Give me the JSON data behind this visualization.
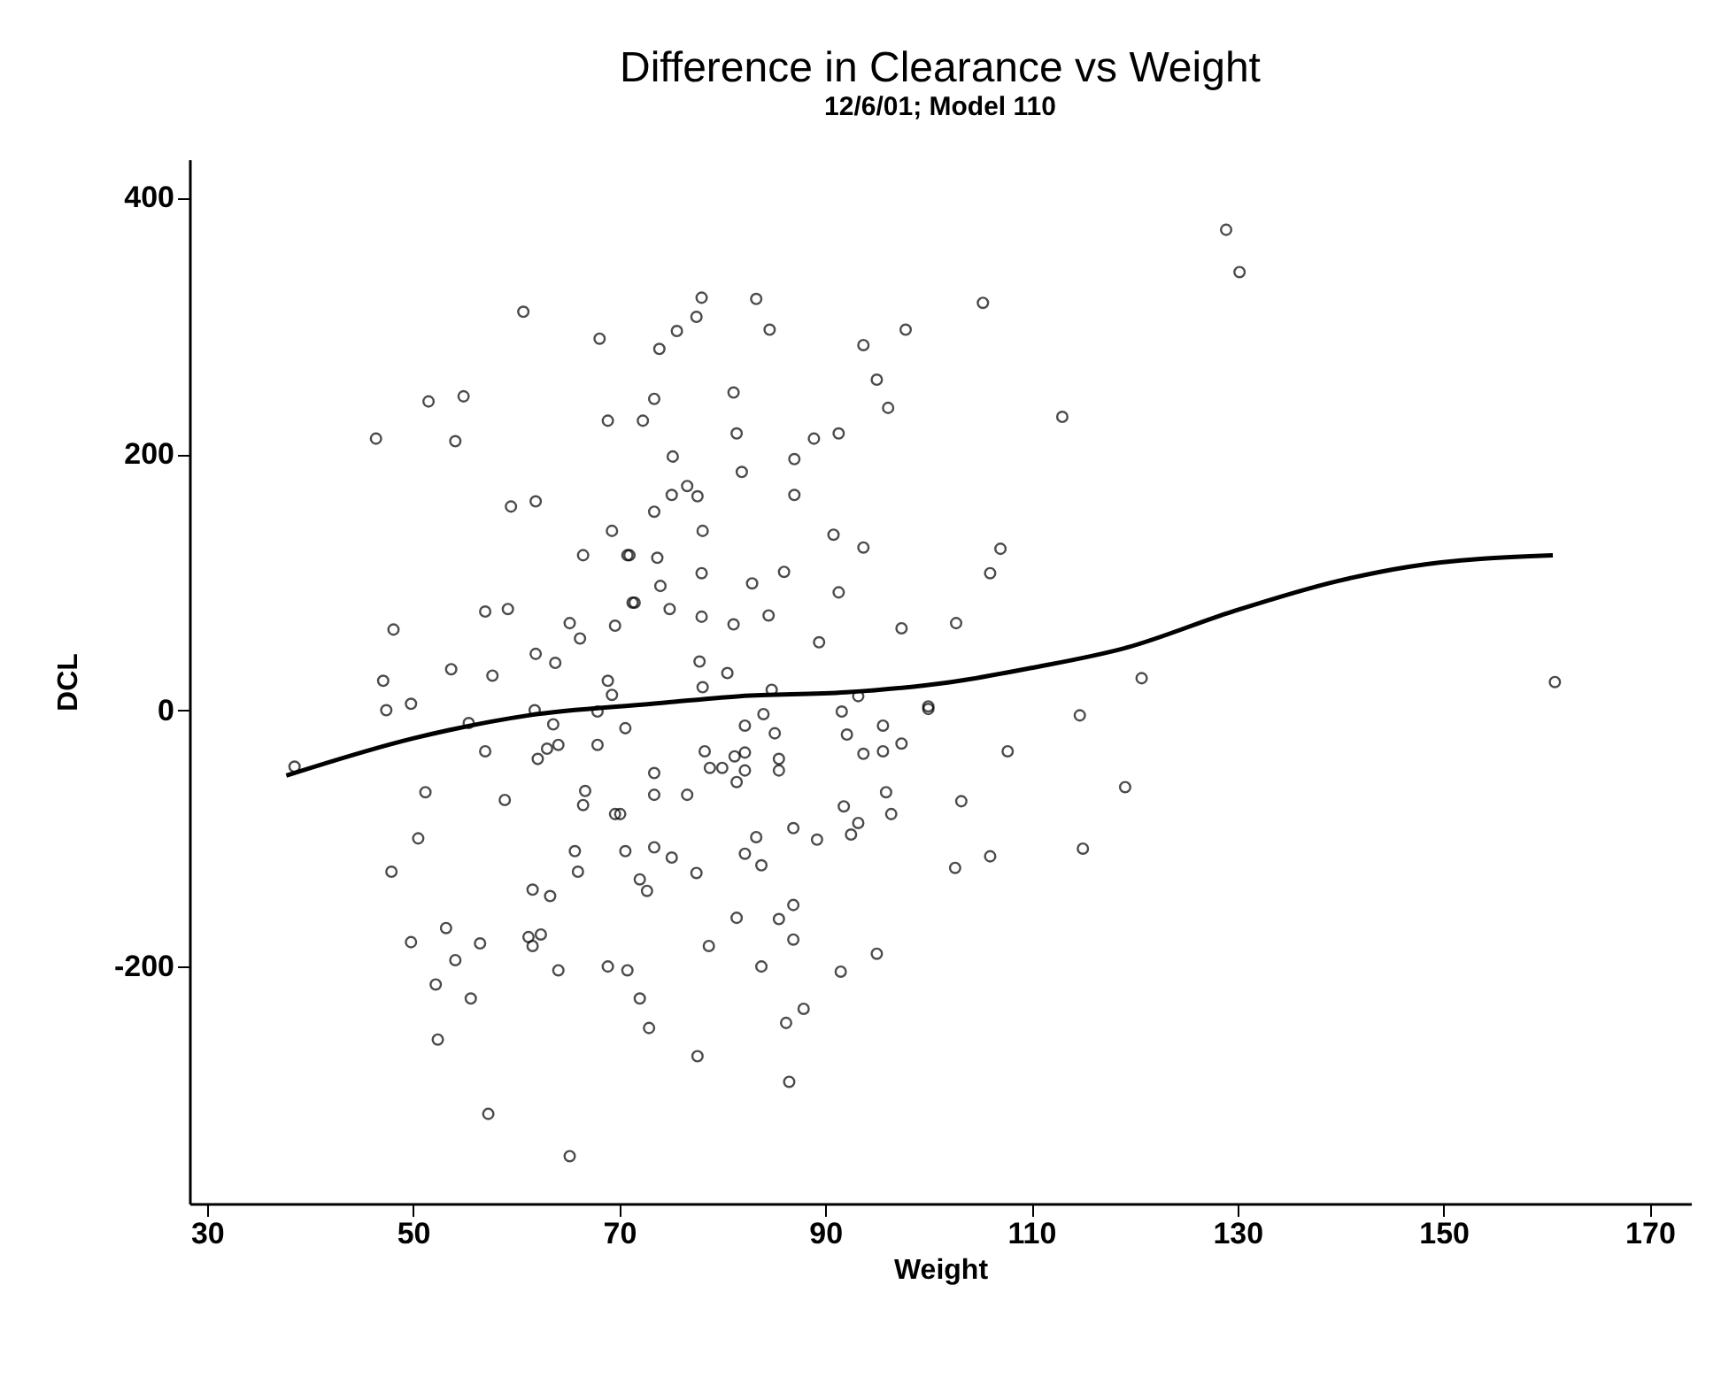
{
  "chart_data": {
    "type": "scatter",
    "title": "Difference in Clearance vs Weight",
    "subtitle": "12/6/01; Model 110",
    "xlabel": "Weight",
    "ylabel": "DCL",
    "xlim": [
      28.3,
      174
    ],
    "ylim": [
      -385,
      430
    ],
    "xticks": [
      30,
      50,
      70,
      90,
      110,
      130,
      150,
      170
    ],
    "yticks": [
      -200,
      0,
      200,
      400
    ],
    "marker": "circle",
    "grid": false,
    "series": [
      {
        "color": "#000000",
        "x": [
          81.4,
          78.7,
          85.5,
          86.9,
          86.9,
          83.8,
          91.5,
          95,
          72,
          72.9,
          77.6,
          86.2,
          87.9,
          86.5,
          102.6,
          106,
          103.2,
          107.7,
          86.9,
          89.2,
          83.3,
          82.2,
          83.8,
          91.8,
          93.2,
          92.5,
          95.9,
          96.4,
          77.5,
          75.1,
          73.4,
          70.6,
          72,
          72.7,
          73.4,
          73.4,
          76.6,
          78.3,
          78.8,
          81.2,
          82.2,
          81.4,
          82.2,
          80,
          82.2,
          84,
          85.1,
          85.5,
          85.5,
          91.6,
          92.1,
          93.7,
          95.6,
          95.6,
          97.4,
          100,
          70.6,
          70.1,
          70.8,
          78,
          83.3,
          77.5,
          75.6,
          73.9,
          84.6,
          93.7,
          97.8,
          105.3,
          95,
          96.1,
          73.4,
          72.3,
          81.1,
          81.4,
          88.9,
          91.3,
          87,
          81.9,
          75.2,
          76.6,
          75.1,
          77.6,
          87,
          73.4,
          78.1,
          90.8,
          93.7,
          107,
          106,
          71,
          73.7,
          74,
          74.9,
          71.5,
          78,
          82.9,
          86,
          91.3,
          78,
          81.1,
          84.5,
          89.4,
          97.4,
          102.7,
          77.8,
          80.5,
          78.1,
          84.8,
          100,
          93.2,
          60.7,
          68.1,
          51.5,
          54.9,
          68.9,
          46.4,
          54.1,
          59.5,
          61.9,
          69.3,
          66.5,
          70.8,
          71.3,
          69.6,
          57,
          59.2,
          65.2,
          66.2,
          48.1,
          61.9,
          63.8,
          53.7,
          57.7,
          47.1,
          47.4,
          49.8,
          55.4,
          61.8,
          63.6,
          68.9,
          69.3,
          67.9,
          38.5,
          57,
          62.1,
          63,
          64.1,
          67.9,
          51.2,
          58.9,
          66.7,
          66.5,
          69.6,
          50.5,
          47.9,
          65.7,
          66,
          61.6,
          63.3,
          53.2,
          49.8,
          56.5,
          54.1,
          61.2,
          62.4,
          61.6,
          64.1,
          52.2,
          55.6,
          68.9,
          52.4,
          57.3,
          65.2,
          128.9,
          130.2,
          113,
          120.7,
          114.7,
          119.1,
          115,
          160.8
        ],
        "values": [
          -162,
          -184,
          -163,
          -152,
          -179,
          -200,
          -204,
          -190,
          -225,
          -248,
          -270,
          -244,
          -233,
          -290,
          -123,
          -114,
          -71,
          -32,
          -92,
          -101,
          -99,
          -112,
          -121,
          -75,
          -88,
          -97,
          -64,
          -81,
          -127,
          -115,
          -107,
          -110,
          -132,
          -141,
          -49,
          -66,
          -66,
          -32,
          -45,
          -36,
          -33,
          -56,
          -47,
          -45,
          -12,
          -3,
          -18,
          -38,
          -47,
          -1,
          -19,
          -34,
          -12,
          -32,
          -26,
          1,
          -14,
          -81,
          -203,
          322,
          321,
          307,
          296,
          282,
          297,
          285,
          297,
          318,
          258,
          236,
          243,
          226,
          248,
          216,
          212,
          216,
          196,
          186,
          198,
          175,
          168,
          167,
          168,
          155,
          140,
          137,
          127,
          126,
          107,
          121,
          119,
          97,
          79,
          84,
          107,
          99,
          108,
          92,
          73,
          67,
          74,
          53,
          64,
          68,
          38,
          29,
          18,
          16,
          3,
          11,
          311,
          290,
          241,
          245,
          226,
          212,
          210,
          159,
          163,
          140,
          121,
          121,
          84,
          66,
          77,
          79,
          68,
          56,
          63,
          44,
          37,
          32,
          27,
          23,
          0,
          5,
          -10,
          0,
          -11,
          23,
          12,
          -1,
          -44,
          -32,
          -38,
          -30,
          -27,
          -27,
          -64,
          -70,
          -63,
          -74,
          -81,
          -100,
          -126,
          -110,
          -126,
          -140,
          -145,
          -170,
          -181,
          -182,
          -195,
          -177,
          -175,
          -184,
          -203,
          -214,
          -225,
          -200,
          -257,
          -315,
          -348,
          375,
          342,
          229,
          25,
          -4,
          -60,
          -108,
          22
        ]
      },
      {
        "type": "line",
        "marker": "none",
        "color": "#000000",
        "x": [
          37.7,
          50,
          61.2,
          73.2,
          81.7,
          92,
          102.2,
          110,
          119.3,
          129.5,
          139.8,
          146.6,
          160.6
        ],
        "values": [
          -51,
          -22,
          -4,
          5,
          11,
          14,
          22,
          33,
          49,
          77,
          101,
          112,
          121
        ]
      }
    ]
  }
}
